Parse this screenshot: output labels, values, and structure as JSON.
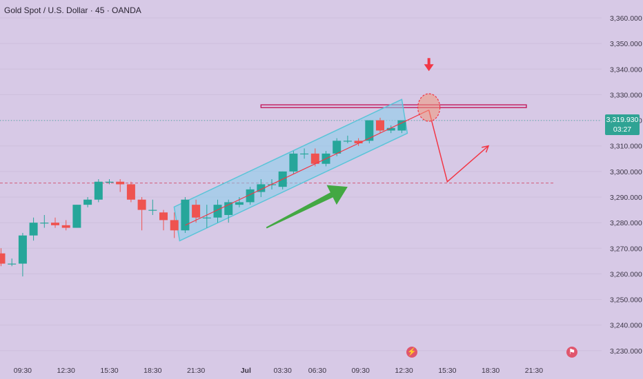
{
  "header": {
    "title": "Gold Spot / U.S. Dollar · 45 · OANDA"
  },
  "price_badge": {
    "price": "3,319.930",
    "countdown": "03:27",
    "color": "#2fa394"
  },
  "events": {
    "lightning_icon": "lightning-icon",
    "flag_icon": "us-flag-icon"
  },
  "colors": {
    "up": "#26a69a",
    "down": "#ef5350",
    "channel": "#5bc4d8",
    "resistance": "#c2185b",
    "projection": "#f23645",
    "arrow": "#43a843",
    "dashed": "#d15a7a"
  },
  "chart_data": {
    "type": "candlestick",
    "title": "Gold Spot / U.S. Dollar · 45 · OANDA",
    "ylim": [
      3227,
      3367
    ],
    "yticks": [
      3230,
      3240,
      3250,
      3260,
      3270,
      3280,
      3290,
      3300,
      3310,
      3320,
      3330,
      3340,
      3350,
      3360
    ],
    "ytick_labels": [
      "3,230.000",
      "3,240.000",
      "3,250.000",
      "3,260.000",
      "3,270.000",
      "3,280.000",
      "3,290.000",
      "3,300.000",
      "3,310.000",
      "3,320.000",
      "3,330.000",
      "3,340.000",
      "3,350.000",
      "3,360.000"
    ],
    "xtick_labels": [
      "09:30",
      "12:30",
      "15:30",
      "18:30",
      "21:30",
      "Jul",
      "03:30",
      "06:30",
      "09:30",
      "12:30",
      "15:30",
      "18:30",
      "21:30"
    ],
    "xtick_bar_index": [
      2,
      6,
      10,
      14,
      18,
      22.6,
      26,
      29.2,
      33.2,
      37.2,
      41.2,
      45.2,
      49.2
    ],
    "candles": [
      {
        "o": 3268,
        "h": 3270,
        "l": 3263,
        "c": 3264
      },
      {
        "o": 3264,
        "h": 3266,
        "l": 3263,
        "c": 3264
      },
      {
        "o": 3264,
        "h": 3276,
        "l": 3259,
        "c": 3275
      },
      {
        "o": 3275,
        "h": 3282,
        "l": 3273,
        "c": 3280
      },
      {
        "o": 3280,
        "h": 3283,
        "l": 3278,
        "c": 3280
      },
      {
        "o": 3280,
        "h": 3282,
        "l": 3278,
        "c": 3279
      },
      {
        "o": 3279,
        "h": 3281,
        "l": 3277,
        "c": 3278
      },
      {
        "o": 3278,
        "h": 3287,
        "l": 3278,
        "c": 3287
      },
      {
        "o": 3287,
        "h": 3290,
        "l": 3286,
        "c": 3289
      },
      {
        "o": 3289,
        "h": 3297,
        "l": 3288,
        "c": 3296
      },
      {
        "o": 3296,
        "h": 3297,
        "l": 3295,
        "c": 3296
      },
      {
        "o": 3296,
        "h": 3297,
        "l": 3292,
        "c": 3295
      },
      {
        "o": 3295,
        "h": 3296,
        "l": 3288,
        "c": 3289
      },
      {
        "o": 3289,
        "h": 3290,
        "l": 3277,
        "c": 3285
      },
      {
        "o": 3285,
        "h": 3289,
        "l": 3283,
        "c": 3285
      },
      {
        "o": 3284,
        "h": 3285,
        "l": 3277,
        "c": 3281
      },
      {
        "o": 3281,
        "h": 3284,
        "l": 3274,
        "c": 3277
      },
      {
        "o": 3277,
        "h": 3290,
        "l": 3276,
        "c": 3289
      },
      {
        "o": 3287,
        "h": 3289,
        "l": 3280,
        "c": 3282
      },
      {
        "o": 3282,
        "h": 3287,
        "l": 3278,
        "c": 3282
      },
      {
        "o": 3282,
        "h": 3289,
        "l": 3280,
        "c": 3287
      },
      {
        "o": 3283,
        "h": 3289,
        "l": 3280,
        "c": 3288
      },
      {
        "o": 3287,
        "h": 3290,
        "l": 3286,
        "c": 3288
      },
      {
        "o": 3288,
        "h": 3294,
        "l": 3287,
        "c": 3293
      },
      {
        "o": 3292,
        "h": 3297,
        "l": 3290,
        "c": 3295
      },
      {
        "o": 3295,
        "h": 3297,
        "l": 3293,
        "c": 3295
      },
      {
        "o": 3294,
        "h": 3300,
        "l": 3293,
        "c": 3300
      },
      {
        "o": 3300,
        "h": 3308,
        "l": 3299,
        "c": 3307
      },
      {
        "o": 3307,
        "h": 3309,
        "l": 3305,
        "c": 3307
      },
      {
        "o": 3307,
        "h": 3309,
        "l": 3302,
        "c": 3303
      },
      {
        "o": 3303,
        "h": 3308,
        "l": 3302,
        "c": 3307
      },
      {
        "o": 3307,
        "h": 3313,
        "l": 3306,
        "c": 3312
      },
      {
        "o": 3312,
        "h": 3314,
        "l": 3311,
        "c": 3312
      },
      {
        "o": 3312,
        "h": 3313,
        "l": 3310,
        "c": 3311
      },
      {
        "o": 3312,
        "h": 3320,
        "l": 3311,
        "c": 3320
      },
      {
        "o": 3320,
        "h": 3321,
        "l": 3315,
        "c": 3316
      },
      {
        "o": 3316,
        "h": 3318,
        "l": 3315,
        "c": 3317
      },
      {
        "o": 3316,
        "h": 3320,
        "l": 3315,
        "c": 3320
      }
    ],
    "annotations": {
      "resistance_level": 3325.5,
      "current_price_line": 3319.93,
      "support_dashed_level": 3295.5,
      "channel": {
        "from_bar": 17,
        "from_low": 3274,
        "to_bar": 37,
        "to_low": 3316,
        "height": 10
      },
      "trend_line": {
        "from_bar": 17,
        "from_price": 3279,
        "to_bar": 39.5,
        "to_price": 3324
      },
      "projection": [
        {
          "bar": 39.5,
          "price": 3324
        },
        {
          "bar": 41.2,
          "price": 3296
        },
        {
          "bar": 45,
          "price": 3310
        }
      ],
      "green_arrow": {
        "from_bar": 24.5,
        "from_price": 3278,
        "to_bar": 32,
        "to_price": 3294
      },
      "target_circle": {
        "bar": 39.5,
        "price": 3325
      },
      "down_arrow": {
        "bar": 39.5,
        "price": 3340
      }
    }
  }
}
